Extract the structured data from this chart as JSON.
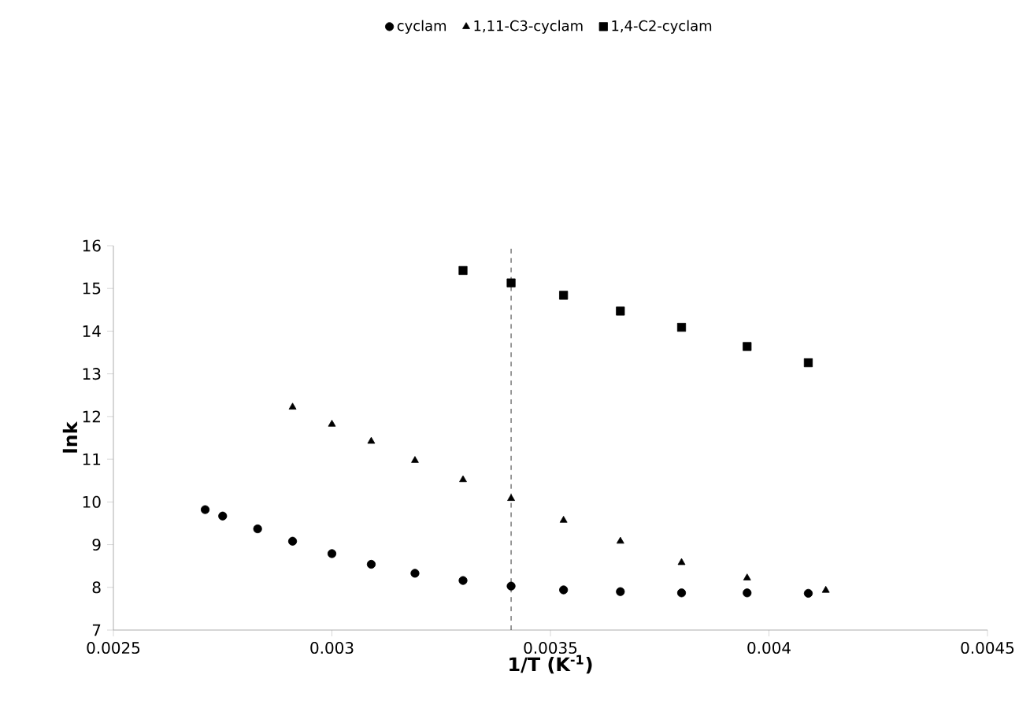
{
  "chart_data": {
    "type": "scatter",
    "xlabel": "1/T (K$^{-1}$)",
    "ylabel": "lnk",
    "xlim": [
      0.0025,
      0.0045
    ],
    "xticks": [
      0.0025,
      0.003,
      0.0035,
      0.004,
      0.0045
    ],
    "ylim": [
      7,
      16
    ],
    "yticks": [
      7,
      8,
      9,
      10,
      11,
      12,
      13,
      14,
      15,
      16
    ],
    "grid": false,
    "legend": "top",
    "series": [
      {
        "name": "cyclam",
        "color": "#000000",
        "marker": "circle",
        "x": [
          0.00271,
          0.00275,
          0.00283,
          0.00291,
          0.003,
          0.00309,
          0.00319,
          0.0033,
          0.00341,
          0.00353,
          0.00366,
          0.0038,
          0.00395,
          0.00409
        ],
        "values": [
          9.82,
          9.67,
          9.37,
          9.08,
          8.79,
          8.54,
          8.33,
          8.16,
          8.03,
          7.94,
          7.9,
          7.87,
          7.87,
          7.86
        ]
      },
      {
        "name": "1,11-C3-cyclam",
        "color": "#000000",
        "marker": "triangle",
        "x": [
          0.00291,
          0.003,
          0.00309,
          0.00319,
          0.0033,
          0.00341,
          0.00353,
          0.00366,
          0.0038,
          0.00395,
          0.00413
        ],
        "values": [
          12.22,
          11.82,
          11.42,
          10.97,
          10.52,
          10.08,
          9.57,
          9.08,
          8.58,
          8.22,
          7.93
        ]
      },
      {
        "name": "1,4-C2-cyclam",
        "color": "#000000",
        "marker": "square",
        "x": [
          0.0033,
          0.00341,
          0.00353,
          0.00366,
          0.0038,
          0.00395,
          0.00409
        ],
        "values": [
          15.42,
          15.13,
          14.84,
          14.47,
          14.09,
          13.64,
          13.26
        ]
      }
    ],
    "ref_lines": [
      {
        "axis": "x",
        "value": 0.00341,
        "color": "#000000",
        "line_style": "dashed"
      }
    ]
  }
}
